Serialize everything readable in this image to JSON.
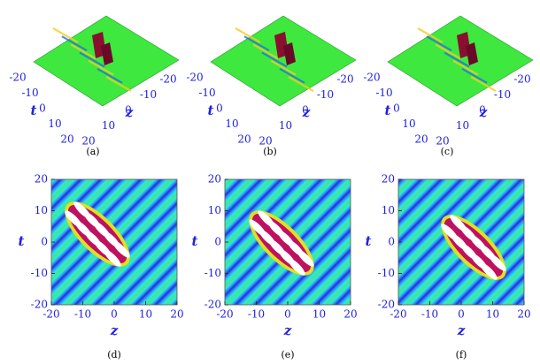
{
  "chart_data": [
    {
      "type": "surface",
      "caption": "(a)",
      "xlabel": "z",
      "ylabel": "t",
      "xlim": [
        -20,
        20
      ],
      "ylim": [
        -20,
        20
      ],
      "xticks": [
        -20,
        -10,
        0,
        10,
        20
      ],
      "yticks": [
        -20,
        -10,
        0,
        10,
        20
      ]
    },
    {
      "type": "surface",
      "caption": "(b)",
      "xlabel": "z",
      "ylabel": "t",
      "xlim": [
        -20,
        20
      ],
      "ylim": [
        -20,
        20
      ],
      "xticks": [
        -20,
        -10,
        0,
        10,
        20
      ],
      "yticks": [
        -20,
        -10,
        0,
        10,
        20
      ]
    },
    {
      "type": "surface",
      "caption": "(c)",
      "xlabel": "z",
      "ylabel": "t",
      "xlim": [
        -20,
        20
      ],
      "ylim": [
        -20,
        20
      ],
      "xticks": [
        -20,
        -10,
        0,
        10,
        20
      ],
      "yticks": [
        -20,
        -10,
        0,
        10,
        20
      ]
    },
    {
      "type": "density",
      "caption": "(d)",
      "xlabel": "z",
      "ylabel": "t",
      "xlim": [
        -20,
        20
      ],
      "ylim": [
        -20,
        20
      ],
      "xticks": [
        -20,
        -10,
        0,
        10,
        20
      ],
      "yticks": [
        -20,
        -10,
        0,
        10,
        20
      ]
    },
    {
      "type": "density",
      "caption": "(e)",
      "xlabel": "z",
      "ylabel": "t",
      "xlim": [
        -20,
        20
      ],
      "ylim": [
        -20,
        20
      ],
      "xticks": [
        -20,
        -10,
        0,
        10,
        20
      ],
      "yticks": [
        -20,
        -10,
        0,
        10,
        20
      ]
    },
    {
      "type": "density",
      "caption": "(f)",
      "xlabel": "z",
      "ylabel": "t",
      "xlim": [
        -20,
        20
      ],
      "ylim": [
        -20,
        20
      ],
      "xticks": [
        -20,
        -10,
        0,
        10,
        20
      ],
      "yticks": [
        -20,
        -10,
        0,
        10,
        20
      ]
    }
  ]
}
